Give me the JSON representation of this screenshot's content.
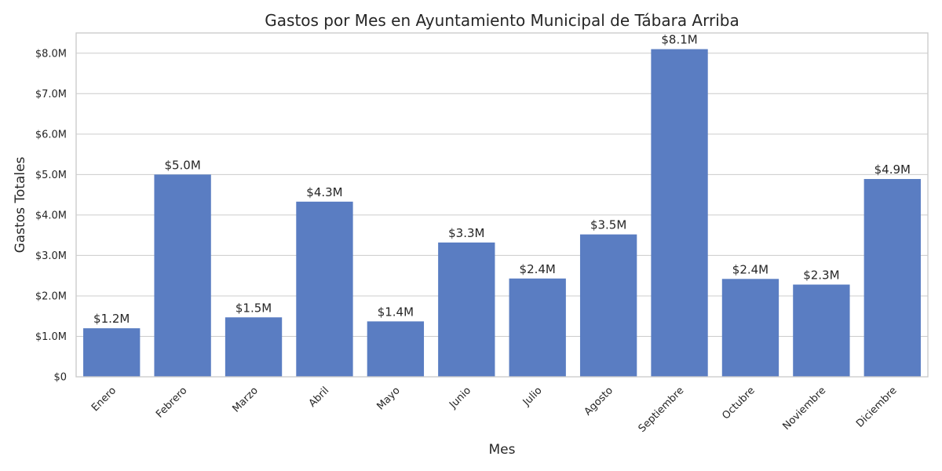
{
  "chart_data": {
    "type": "bar",
    "title": "Gastos por Mes en Ayuntamiento Municipal de Tábara Arriba",
    "xlabel": "Mes",
    "ylabel": "Gastos Totales",
    "categories": [
      "Enero",
      "Febrero",
      "Marzo",
      "Abril",
      "Mayo",
      "Junio",
      "Julio",
      "Agosto",
      "Septiembre",
      "Octubre",
      "Noviembre",
      "Diciembre"
    ],
    "values": [
      1.2,
      5.0,
      1.47,
      4.33,
      1.37,
      3.32,
      2.43,
      3.52,
      8.1,
      2.42,
      2.28,
      4.89
    ],
    "value_labels": [
      "$1.2M",
      "$5.0M",
      "$1.5M",
      "$4.3M",
      "$1.4M",
      "$3.3M",
      "$2.4M",
      "$3.5M",
      "$8.1M",
      "$2.4M",
      "$2.3M",
      "$4.9M"
    ],
    "value_unit": "millones de $",
    "ylim": [
      0,
      8.5
    ],
    "yticks": [
      0,
      1,
      2,
      3,
      4,
      5,
      6,
      7,
      8
    ],
    "ytick_labels": [
      "$0",
      "$1.0M",
      "$2.0M",
      "$3.0M",
      "$4.0M",
      "$5.0M",
      "$6.0M",
      "$7.0M",
      "$8.0M"
    ],
    "grid": true,
    "bar_color": "#5a7dc2",
    "grid_color": "#cccccc"
  }
}
